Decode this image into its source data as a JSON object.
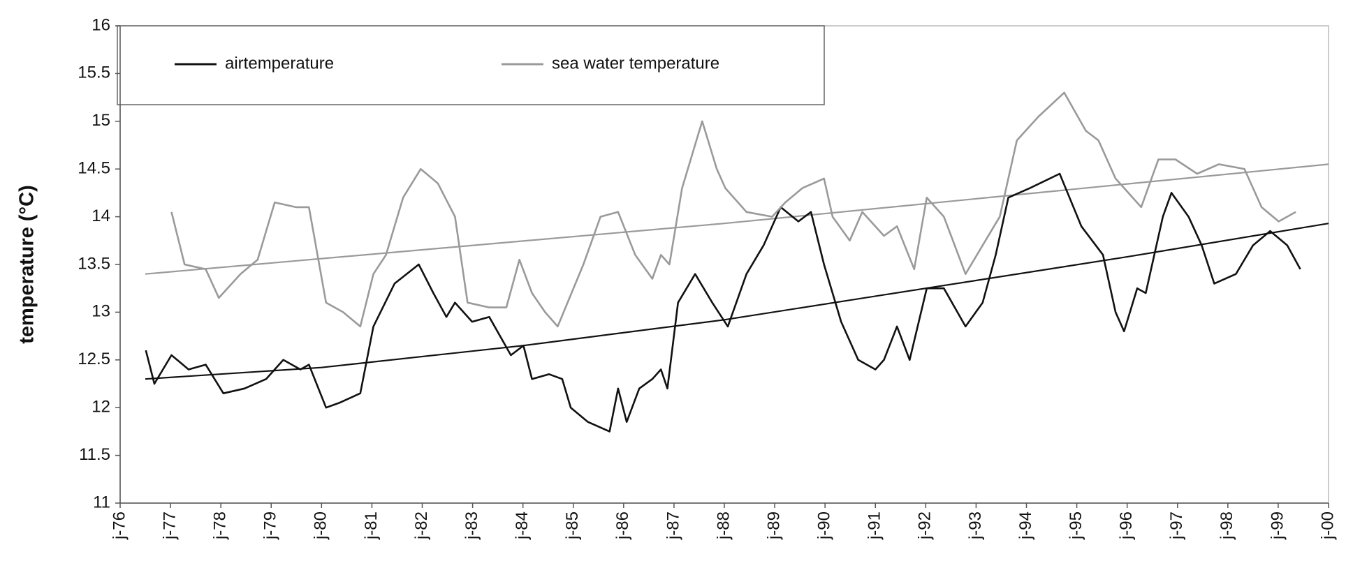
{
  "chart_data": {
    "type": "line",
    "y_label": "temperature (°C)",
    "xlim": [
      1976,
      2000
    ],
    "xticks": [
      {
        "value": 1976,
        "label": "j-76"
      },
      {
        "value": 1977,
        "label": "j-77"
      },
      {
        "value": 1978,
        "label": "j-78"
      },
      {
        "value": 1979,
        "label": "j-79"
      },
      {
        "value": 1980,
        "label": "j-80"
      },
      {
        "value": 1981,
        "label": "j-81"
      },
      {
        "value": 1982,
        "label": "j-82"
      },
      {
        "value": 1983,
        "label": "j-83"
      },
      {
        "value": 1984,
        "label": "j-84"
      },
      {
        "value": 1985,
        "label": "j-85"
      },
      {
        "value": 1986,
        "label": "j-86"
      },
      {
        "value": 1987,
        "label": "j-87"
      },
      {
        "value": 1988,
        "label": "j-88"
      },
      {
        "value": 1989,
        "label": "j-89"
      },
      {
        "value": 1990,
        "label": "j-90"
      },
      {
        "value": 1991,
        "label": "j-91"
      },
      {
        "value": 1992,
        "label": "j-92"
      },
      {
        "value": 1993,
        "label": "j-93"
      },
      {
        "value": 1994,
        "label": "j-94"
      },
      {
        "value": 1995,
        "label": "j-95"
      },
      {
        "value": 1996,
        "label": "j-96"
      },
      {
        "value": 1997,
        "label": "j-97"
      },
      {
        "value": 1998,
        "label": "j-98"
      },
      {
        "value": 1999,
        "label": "j-99"
      },
      {
        "value": 2000,
        "label": "j-00"
      }
    ],
    "ylim": [
      11,
      16
    ],
    "yticks": [
      11,
      11.5,
      12,
      12.5,
      13,
      13.5,
      14,
      14.5,
      15,
      15.5,
      16
    ],
    "series": [
      {
        "name": "airtemperature",
        "color": "#111111",
        "x": [
          1976.51,
          1976.68,
          1977.02,
          1977.36,
          1977.7,
          1978.05,
          1978.47,
          1978.9,
          1979.24,
          1979.58,
          1979.75,
          1980.09,
          1980.35,
          1980.77,
          1981.03,
          1981.45,
          1981.93,
          1982.22,
          1982.48,
          1982.65,
          1982.99,
          1983.33,
          1983.76,
          1984.01,
          1984.18,
          1984.52,
          1984.78,
          1984.95,
          1985.29,
          1985.72,
          1985.89,
          1986.06,
          1986.31,
          1986.57,
          1986.74,
          1986.87,
          1987.08,
          1987.42,
          1987.76,
          1988.07,
          1988.44,
          1988.78,
          1989.12,
          1989.47,
          1989.72,
          1989.98,
          1990.32,
          1990.66,
          1991.0,
          1991.17,
          1991.43,
          1991.68,
          1992.02,
          1992.36,
          1992.79,
          1993.13,
          1993.39,
          1993.64,
          1994.07,
          1994.66,
          1995.09,
          1995.52,
          1995.77,
          1995.94,
          1996.2,
          1996.37,
          1996.71,
          1996.88,
          1997.22,
          1997.48,
          1997.73,
          1998.16,
          1998.5,
          1998.84,
          1999.18,
          1999.44
        ],
        "values": [
          12.6,
          12.25,
          12.55,
          12.4,
          12.45,
          12.15,
          12.2,
          12.3,
          12.5,
          12.4,
          12.45,
          12.0,
          12.05,
          12.15,
          12.85,
          13.3,
          13.5,
          13.2,
          12.95,
          13.1,
          12.9,
          12.95,
          12.55,
          12.65,
          12.3,
          12.35,
          12.3,
          12.0,
          11.85,
          11.75,
          12.2,
          11.85,
          12.2,
          12.3,
          12.4,
          12.2,
          13.1,
          13.4,
          13.1,
          12.85,
          13.4,
          13.7,
          14.1,
          13.95,
          14.05,
          13.5,
          12.9,
          12.5,
          12.4,
          12.5,
          12.85,
          12.5,
          13.25,
          13.25,
          12.85,
          13.1,
          13.6,
          14.2,
          14.3,
          14.45,
          13.9,
          13.6,
          13.0,
          12.8,
          13.25,
          13.2,
          14.0,
          14.25,
          14.0,
          13.7,
          13.3,
          13.4,
          13.7,
          13.85,
          13.7,
          13.45
        ]
      },
      {
        "name": "sea water temperature",
        "color": "#9a9a9a",
        "x": [
          1977.02,
          1977.28,
          1977.7,
          1977.96,
          1978.39,
          1978.73,
          1979.07,
          1979.49,
          1979.75,
          1980.09,
          1980.43,
          1980.77,
          1981.03,
          1981.28,
          1981.62,
          1981.97,
          1982.31,
          1982.65,
          1982.9,
          1983.33,
          1983.67,
          1983.93,
          1984.18,
          1984.44,
          1984.69,
          1985.2,
          1985.54,
          1985.89,
          1986.23,
          1986.57,
          1986.74,
          1986.91,
          1987.16,
          1987.56,
          1987.85,
          1988.02,
          1988.44,
          1988.95,
          1989.21,
          1989.55,
          1989.98,
          1990.15,
          1990.49,
          1990.74,
          1991.17,
          1991.43,
          1991.77,
          1992.02,
          1992.36,
          1992.79,
          1993.13,
          1993.47,
          1993.81,
          1994.24,
          1994.75,
          1995.18,
          1995.43,
          1995.77,
          1996.28,
          1996.62,
          1996.96,
          1997.39,
          1997.82,
          1998.33,
          1998.67,
          1999.01,
          1999.35
        ],
        "values": [
          14.05,
          13.5,
          13.45,
          13.15,
          13.4,
          13.55,
          14.15,
          14.1,
          14.1,
          13.1,
          13.0,
          12.85,
          13.4,
          13.6,
          14.2,
          14.5,
          14.35,
          14.0,
          13.1,
          13.05,
          13.05,
          13.55,
          13.2,
          13.0,
          12.85,
          13.5,
          14.0,
          14.05,
          13.6,
          13.35,
          13.6,
          13.5,
          14.3,
          15.0,
          14.5,
          14.3,
          14.05,
          14.0,
          14.15,
          14.3,
          14.4,
          14.0,
          13.75,
          14.05,
          13.8,
          13.9,
          13.45,
          14.2,
          14.0,
          13.4,
          13.7,
          14.0,
          14.8,
          15.05,
          15.3,
          14.9,
          14.8,
          14.4,
          14.1,
          14.6,
          14.6,
          14.45,
          14.55,
          14.5,
          14.1,
          13.95,
          14.05
        ]
      }
    ],
    "trendlines": [
      {
        "color": "#111111",
        "x": [
          1976.5,
          1980,
          1984,
          1988,
          1992,
          1996,
          2000
        ],
        "values": [
          12.3,
          12.42,
          12.65,
          12.92,
          13.25,
          13.58,
          13.93
        ]
      },
      {
        "color": "#9a9a9a",
        "x": [
          1976.5,
          1988,
          2000
        ],
        "values": [
          13.4,
          13.93,
          14.55
        ]
      }
    ],
    "grid": false
  }
}
